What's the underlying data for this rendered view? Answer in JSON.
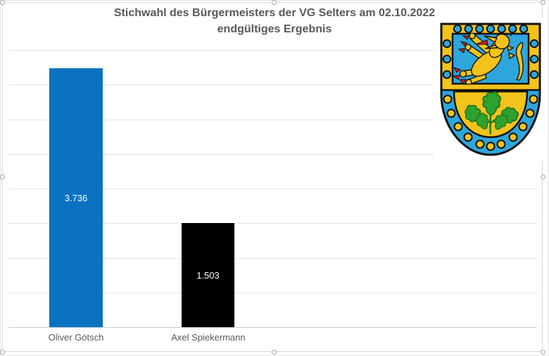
{
  "chart": {
    "title_line1": "Stichwahl des Bürgermeisters der VG Selters am 02.10.2022",
    "title_line2": "endgültiges Ergebnis"
  },
  "chart_data": {
    "type": "bar",
    "title": "Stichwahl des Bürgermeisters der VG Selters am 02.10.2022 endgültiges Ergebnis",
    "categories": [
      "Oliver Götsch",
      "Axel Spiekermann"
    ],
    "values": [
      3736,
      1503
    ],
    "value_labels": [
      "3.736",
      "1.503"
    ],
    "bar_colors": [
      "#0b72c2",
      "#000000"
    ],
    "xlabel": "",
    "ylabel": "",
    "ylim": [
      0,
      4000
    ],
    "gridline_step": 500,
    "grid": true,
    "y_axis_labels_visible": false,
    "legend": "none"
  },
  "emblem": {
    "name": "Wappen der Verbandsgemeinde Selters (Westerwald)",
    "colors": {
      "gold": "#f2c31b",
      "azure": "#2ea6dc",
      "green": "#2fa12f",
      "red": "#e01616",
      "outline": "#111111"
    }
  },
  "selection": {
    "state": "chart-selected",
    "handle_count": 8
  }
}
